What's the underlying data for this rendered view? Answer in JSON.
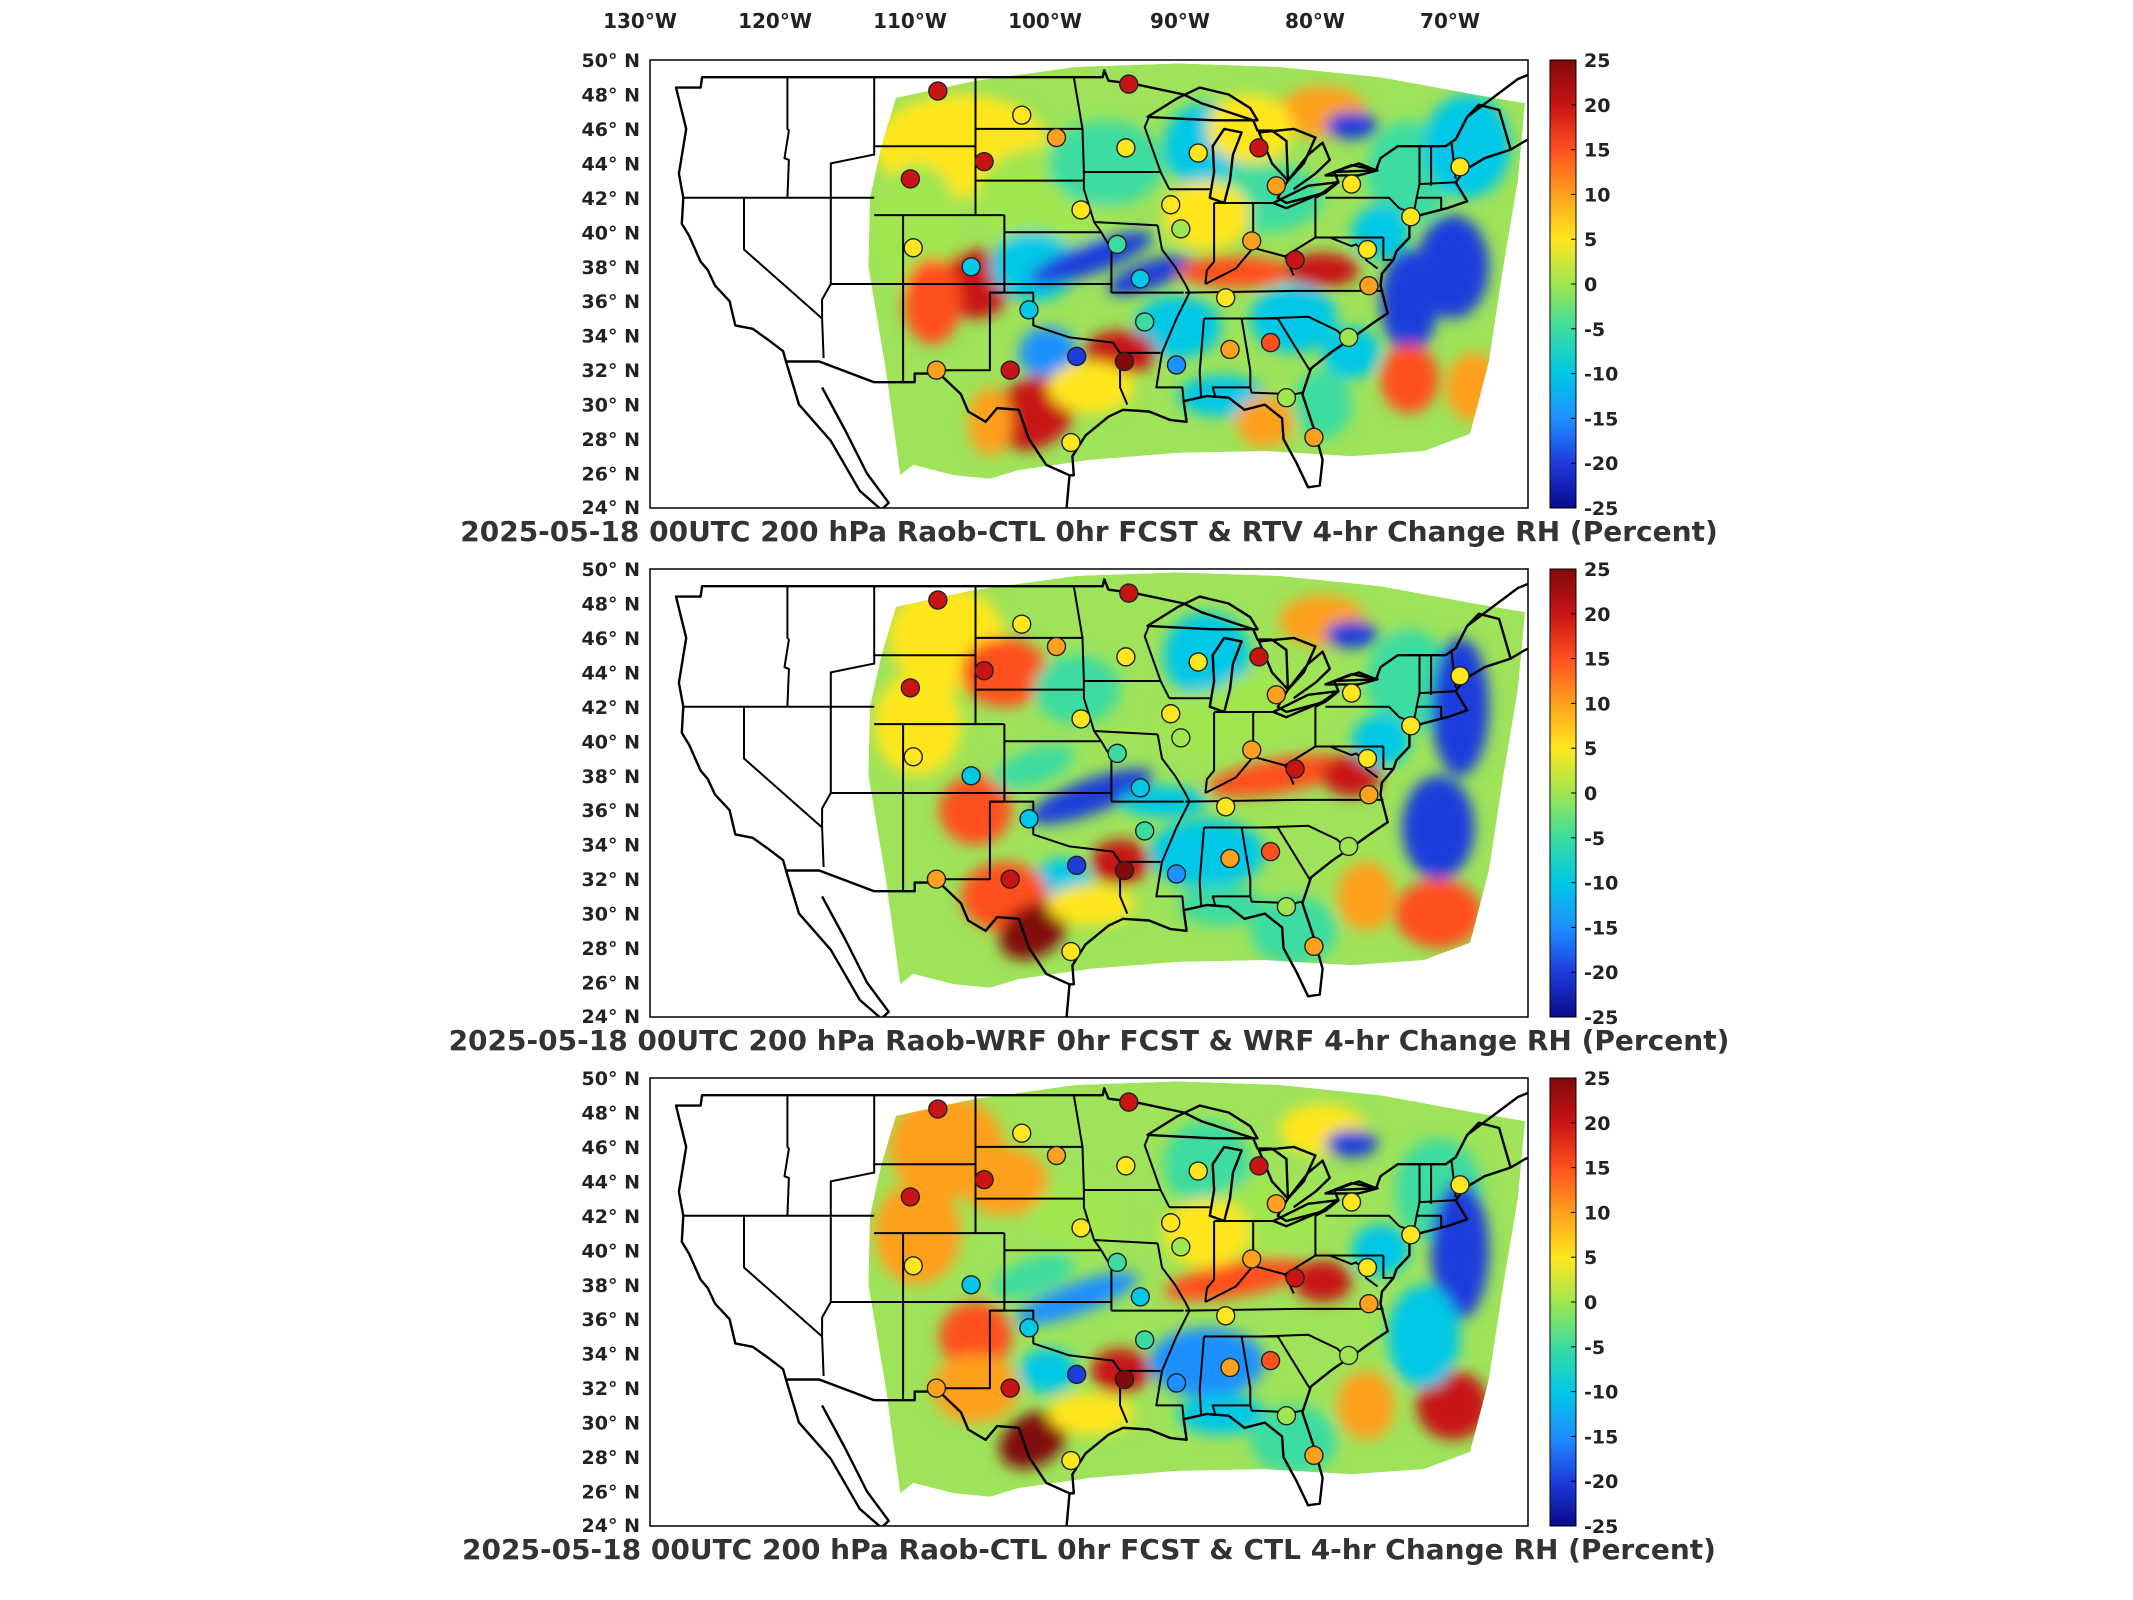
{
  "top_lon_labels": [
    "130°W",
    "120°W",
    "110°W",
    "100°W",
    "90°W",
    "80°W",
    "70°W"
  ],
  "lat_labels": [
    "50° N",
    "48° N",
    "46° N",
    "44° N",
    "42° N",
    "40° N",
    "38° N",
    "36° N",
    "34° N",
    "32° N",
    "30° N",
    "28° N",
    "26° N",
    "24° N"
  ],
  "colorbar_ticks": [
    "25",
    "20",
    "15",
    "10",
    "5",
    "0",
    "-5",
    "-10",
    "-15",
    "-20",
    "-25"
  ],
  "colorscale": [
    "#0a0a8c",
    "#1e3cdc",
    "#1e90ff",
    "#00c8e6",
    "#3cdca0",
    "#a0e650",
    "#ffe61e",
    "#ffa01e",
    "#ff501e",
    "#c81414",
    "#820a0a"
  ],
  "panels": [
    {
      "title": "2025-05-18 00UTC 200 hPa Raob-CTL 0hr FCST & RTV 4-hr Change RH (Percent)"
    },
    {
      "title": "2025-05-18 00UTC 200 hPa Raob-WRF 0hr FCST & WRF 4-hr Change RH (Percent)"
    },
    {
      "title": "2025-05-18 00UTC 200 hPa Raob-CTL 0hr FCST & CTL 4-hr Change RH (Percent)"
    }
  ],
  "stations": [
    {
      "lon": -106.6,
      "lat": 48.2,
      "v": 20
    },
    {
      "lon": -93.4,
      "lat": 48.6,
      "v": 22
    },
    {
      "lon": -100.8,
      "lat": 46.8,
      "v": 7
    },
    {
      "lon": -98.4,
      "lat": 45.5,
      "v": 9
    },
    {
      "lon": -93.6,
      "lat": 44.9,
      "v": 3
    },
    {
      "lon": -88.6,
      "lat": 44.6,
      "v": 4
    },
    {
      "lon": -84.4,
      "lat": 44.9,
      "v": 22
    },
    {
      "lon": -83.2,
      "lat": 42.7,
      "v": 8
    },
    {
      "lon": -78.0,
      "lat": 42.8,
      "v": 6
    },
    {
      "lon": -108.5,
      "lat": 43.1,
      "v": 19
    },
    {
      "lon": -103.4,
      "lat": 44.1,
      "v": 19
    },
    {
      "lon": -96.7,
      "lat": 41.3,
      "v": 5
    },
    {
      "lon": -90.5,
      "lat": 41.6,
      "v": 4
    },
    {
      "lon": -89.8,
      "lat": 40.2,
      "v": 0
    },
    {
      "lon": -94.2,
      "lat": 39.3,
      "v": -5
    },
    {
      "lon": -108.3,
      "lat": 39.1,
      "v": 7
    },
    {
      "lon": -104.3,
      "lat": 38.0,
      "v": -9
    },
    {
      "lon": -84.9,
      "lat": 39.5,
      "v": 8
    },
    {
      "lon": -86.7,
      "lat": 36.2,
      "v": 4
    },
    {
      "lon": -92.6,
      "lat": 37.3,
      "v": -8
    },
    {
      "lon": -100.3,
      "lat": 35.5,
      "v": -8
    },
    {
      "lon": -92.3,
      "lat": 34.8,
      "v": -6
    },
    {
      "lon": -97.0,
      "lat": 32.8,
      "v": -22
    },
    {
      "lon": -93.7,
      "lat": 32.5,
      "v": 24
    },
    {
      "lon": -90.1,
      "lat": 32.3,
      "v": -16
    },
    {
      "lon": -86.4,
      "lat": 33.2,
      "v": 9
    },
    {
      "lon": -83.6,
      "lat": 33.6,
      "v": 14
    },
    {
      "lon": -78.2,
      "lat": 33.9,
      "v": 2
    },
    {
      "lon": -81.9,
      "lat": 38.4,
      "v": 22
    },
    {
      "lon": -76.9,
      "lat": 39.0,
      "v": 5
    },
    {
      "lon": -76.8,
      "lat": 36.9,
      "v": 8
    },
    {
      "lon": -73.9,
      "lat": 40.9,
      "v": 3
    },
    {
      "lon": -70.5,
      "lat": 43.8,
      "v": 6
    },
    {
      "lon": -106.7,
      "lat": 32.0,
      "v": 8
    },
    {
      "lon": -101.6,
      "lat": 32.0,
      "v": 18
    },
    {
      "lon": -97.4,
      "lat": 27.8,
      "v": 5
    },
    {
      "lon": -80.6,
      "lat": 28.1,
      "v": 8
    },
    {
      "lon": -82.5,
      "lat": 30.4,
      "v": 2
    }
  ]
}
